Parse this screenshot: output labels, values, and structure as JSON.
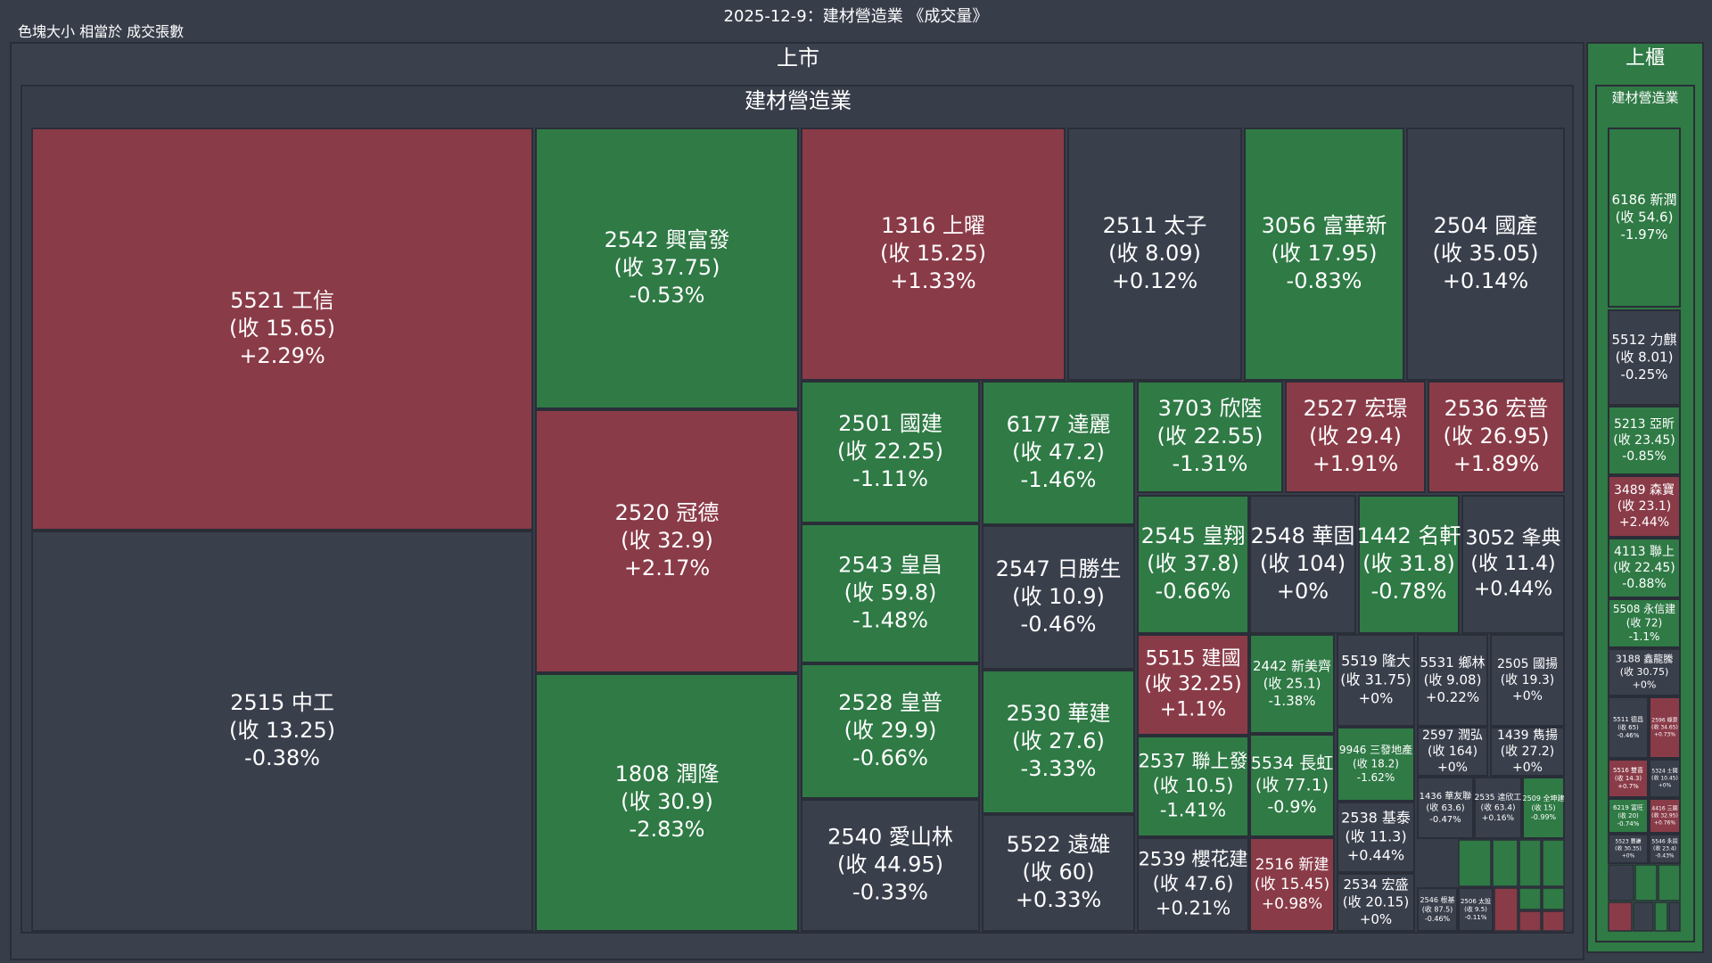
{
  "title": "2025-12-9：建材營造業 《成交量》",
  "subtitle": "色塊大小 相當於 成交張數",
  "colors": {
    "background": "#383d4a",
    "neutral": "#3a3f4c",
    "up": "#8a3b48",
    "down": "#2f7a45",
    "border": "#2a2e38"
  },
  "chart_data": {
    "type": "treemap",
    "size_metric": "成交張數",
    "groups": [
      {
        "market": "上市",
        "sector": "建材營造業",
        "stocks": [
          {
            "code": "5521",
            "name": "工信",
            "close": "15.65",
            "change": "+2.29%"
          },
          {
            "code": "2515",
            "name": "中工",
            "close": "13.25",
            "change": "-0.38%"
          },
          {
            "code": "2542",
            "name": "興富發",
            "close": "37.75",
            "change": "-0.53%"
          },
          {
            "code": "2520",
            "name": "冠德",
            "close": "32.9",
            "change": "+2.17%"
          },
          {
            "code": "1808",
            "name": "潤隆",
            "close": "30.9",
            "change": "-2.83%"
          },
          {
            "code": "1316",
            "name": "上曜",
            "close": "15.25",
            "change": "+1.33%"
          },
          {
            "code": "2511",
            "name": "太子",
            "close": "8.09",
            "change": "+0.12%"
          },
          {
            "code": "3056",
            "name": "富華新",
            "close": "17.95",
            "change": "-0.83%"
          },
          {
            "code": "2504",
            "name": "國產",
            "close": "35.05",
            "change": "+0.14%"
          },
          {
            "code": "2501",
            "name": "國建",
            "close": "22.25",
            "change": "-1.11%"
          },
          {
            "code": "2543",
            "name": "皇昌",
            "close": "59.8",
            "change": "-1.48%"
          },
          {
            "code": "2528",
            "name": "皇普",
            "close": "29.9",
            "change": "-0.66%"
          },
          {
            "code": "2540",
            "name": "愛山林",
            "close": "44.95",
            "change": "-0.33%"
          },
          {
            "code": "6177",
            "name": "達麗",
            "close": "47.2",
            "change": "-1.46%"
          },
          {
            "code": "2547",
            "name": "日勝生",
            "close": "10.9",
            "change": "-0.46%"
          },
          {
            "code": "2530",
            "name": "華建",
            "close": "27.6",
            "change": "-3.33%"
          },
          {
            "code": "5522",
            "name": "遠雄",
            "close": "60",
            "change": "+0.33%"
          },
          {
            "code": "3703",
            "name": "欣陸",
            "close": "22.55",
            "change": "-1.31%"
          },
          {
            "code": "2527",
            "name": "宏璟",
            "close": "29.4",
            "change": "+1.91%"
          },
          {
            "code": "2536",
            "name": "宏普",
            "close": "26.95",
            "change": "+1.89%"
          },
          {
            "code": "2545",
            "name": "皇翔",
            "close": "37.8",
            "change": "-0.66%"
          },
          {
            "code": "2548",
            "name": "華固",
            "close": "104",
            "change": "+0%"
          },
          {
            "code": "1442",
            "name": "名軒",
            "close": "31.8",
            "change": "-0.78%"
          },
          {
            "code": "3052",
            "name": "夆典",
            "close": "11.4",
            "change": "+0.44%"
          },
          {
            "code": "5515",
            "name": "建國",
            "close": "32.25",
            "change": "+1.1%"
          },
          {
            "code": "2537",
            "name": "聯上發",
            "close": "10.5",
            "change": "-1.41%"
          },
          {
            "code": "2539",
            "name": "櫻花建",
            "close": "47.6",
            "change": "+0.21%"
          },
          {
            "code": "2442",
            "name": "新美齊",
            "close": "25.1",
            "change": "-1.38%"
          },
          {
            "code": "5534",
            "name": "長虹",
            "close": "77.1",
            "change": "-0.9%"
          },
          {
            "code": "2516",
            "name": "新建",
            "close": "15.45",
            "change": "+0.98%"
          },
          {
            "code": "5519",
            "name": "隆大",
            "close": "31.75",
            "change": "+0%"
          },
          {
            "code": "5531",
            "name": "鄉林",
            "close": "9.08",
            "change": "+0.22%"
          },
          {
            "code": "2505",
            "name": "國揚",
            "close": "19.3",
            "change": "+0%"
          },
          {
            "code": "9946",
            "name": "三發地產",
            "close": "18.2",
            "change": "-1.62%"
          },
          {
            "code": "2597",
            "name": "潤弘",
            "close": "164",
            "change": "+0%"
          },
          {
            "code": "1439",
            "name": "雋揚",
            "close": "27.2",
            "change": "+0%"
          },
          {
            "code": "2538",
            "name": "基泰",
            "close": "11.3",
            "change": "+0.44%"
          },
          {
            "code": "2534",
            "name": "宏盛",
            "close": "20.15",
            "change": "+0%"
          },
          {
            "code": "1436",
            "name": "華友聯",
            "close": "63.6",
            "change": "-0.47%"
          },
          {
            "code": "2535",
            "name": "達欣工",
            "close": "63.4",
            "change": "+0.16%"
          },
          {
            "code": "2509",
            "name": "全坤建",
            "close": "15",
            "change": "-0.99%"
          },
          {
            "code": "2546",
            "name": "根基",
            "close": "87.5",
            "change": "-0.46%"
          },
          {
            "code": "2506",
            "name": "太設",
            "close": "9.5",
            "change": "-0.11%"
          }
        ]
      },
      {
        "market": "上櫃",
        "sector": "建材營造業",
        "stocks": [
          {
            "code": "6186",
            "name": "新潤",
            "close": "54.6",
            "change": "-1.97%"
          },
          {
            "code": "5512",
            "name": "力麒",
            "close": "8.01",
            "change": "-0.25%"
          },
          {
            "code": "5213",
            "name": "亞昕",
            "close": "23.45",
            "change": "-0.85%"
          },
          {
            "code": "3489",
            "name": "森寶",
            "close": "23.1",
            "change": "+2.44%"
          },
          {
            "code": "4113",
            "name": "聯上",
            "close": "22.45",
            "change": "-0.88%"
          },
          {
            "code": "5508",
            "name": "永信建",
            "close": "72",
            "change": "-1.1%"
          },
          {
            "code": "3188",
            "name": "鑫龍騰",
            "close": "30.75",
            "change": "+0%"
          },
          {
            "code": "5511",
            "name": "德昌",
            "close": "65",
            "change": "-0.46%"
          },
          {
            "code": "2596",
            "name": "綠意",
            "close": "34.65",
            "change": "+0.73%"
          },
          {
            "code": "5516",
            "name": "雙喜",
            "close": "14.3",
            "change": "+0.7%"
          },
          {
            "code": "5324",
            "name": "士開",
            "close": "10.45",
            "change": "+0%"
          },
          {
            "code": "6219",
            "name": "富旺",
            "close": "20",
            "change": "-0.74%"
          },
          {
            "code": "4416",
            "name": "三圓",
            "close": "32.95",
            "change": "+0.76%"
          },
          {
            "code": "5523",
            "name": "豐謙",
            "close": "30.35",
            "change": "+0%"
          },
          {
            "code": "5546",
            "name": "永固",
            "close": "23.4",
            "change": "-0.43%"
          }
        ]
      }
    ]
  }
}
